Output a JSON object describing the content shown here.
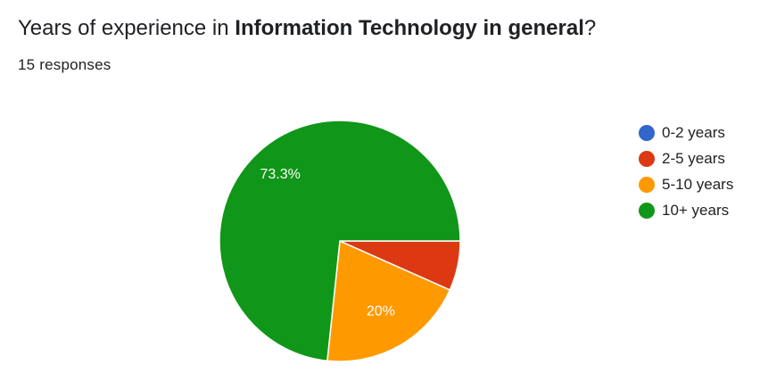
{
  "header": {
    "title_prefix": "Years of experience in ",
    "title_bold": "Information Technology in general",
    "title_suffix": "?",
    "responses": "15 responses"
  },
  "chart_data": {
    "type": "pie",
    "categories": [
      "0-2 years",
      "2-5 years",
      "5-10 years",
      "10+ years"
    ],
    "values": [
      0,
      1,
      3,
      11
    ],
    "slice_labels": [
      "",
      "",
      "20%",
      "73.3%"
    ],
    "colors": [
      "#3366cc",
      "#dc3912",
      "#ff9900",
      "#109618"
    ],
    "legend": "right",
    "start_angle_deg": 90
  }
}
